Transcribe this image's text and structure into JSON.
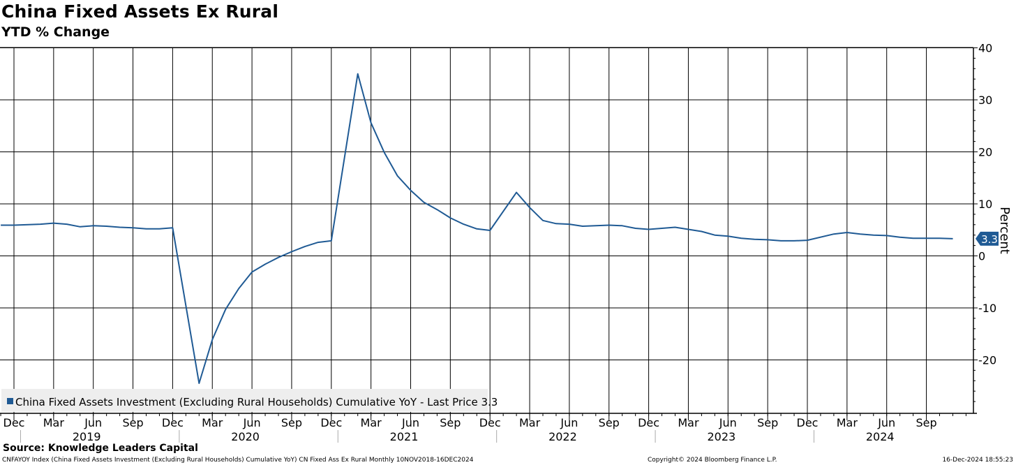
{
  "header": {
    "title": "China Fixed Assets Ex Rural",
    "subtitle": "YTD % Change"
  },
  "footer": {
    "source": "Source: Knowledge Leaders Capital",
    "ticker_line": "CNFAYOY Index (China Fixed Assets Investment (Excluding Rural Households) Cumulative YoY) CN Fixed Ass Ex Rural  Monthly 10NOV2018-16DEC2024",
    "copyright": "Copyright© 2024 Bloomberg Finance L.P.",
    "timestamp": "16-Dec-2024 18:55:23"
  },
  "colors": {
    "series": "#1f5a94",
    "grid": "#000000",
    "legend_bg": "#eeeeee"
  },
  "chart_data": {
    "type": "line",
    "title": "China Fixed Assets Ex Rural",
    "subtitle": "YTD % Change",
    "ylabel": "Percent",
    "ylim": [
      -30,
      40
    ],
    "y_ticks": [
      40,
      30,
      20,
      10,
      0,
      -10,
      -20
    ],
    "y_tick_labels": [
      "40",
      "30",
      "20",
      "10",
      "0",
      "-10",
      "-20"
    ],
    "x_range": [
      "2018-11",
      "2024-12"
    ],
    "x_tick_labels": [
      {
        "label": "Dec",
        "date": "2018-12"
      },
      {
        "label": "Mar",
        "date": "2019-03"
      },
      {
        "label": "Jun",
        "date": "2019-06"
      },
      {
        "label": "Sep",
        "date": "2019-09"
      },
      {
        "label": "Dec",
        "date": "2019-12"
      },
      {
        "label": "Mar",
        "date": "2020-03"
      },
      {
        "label": "Jun",
        "date": "2020-06"
      },
      {
        "label": "Sep",
        "date": "2020-09"
      },
      {
        "label": "Dec",
        "date": "2020-12"
      },
      {
        "label": "Mar",
        "date": "2021-03"
      },
      {
        "label": "Jun",
        "date": "2021-06"
      },
      {
        "label": "Sep",
        "date": "2021-09"
      },
      {
        "label": "Dec",
        "date": "2021-12"
      },
      {
        "label": "Mar",
        "date": "2022-03"
      },
      {
        "label": "Jun",
        "date": "2022-06"
      },
      {
        "label": "Sep",
        "date": "2022-09"
      },
      {
        "label": "Dec",
        "date": "2022-12"
      },
      {
        "label": "Mar",
        "date": "2023-03"
      },
      {
        "label": "Jun",
        "date": "2023-06"
      },
      {
        "label": "Sep",
        "date": "2023-09"
      },
      {
        "label": "Dec",
        "date": "2023-12"
      },
      {
        "label": "Mar",
        "date": "2024-03"
      },
      {
        "label": "Jun",
        "date": "2024-06"
      },
      {
        "label": "Sep",
        "date": "2024-09"
      }
    ],
    "year_labels": [
      {
        "label": "2019",
        "date": "2019-06"
      },
      {
        "label": "2020",
        "date": "2020-06"
      },
      {
        "label": "2021",
        "date": "2021-06"
      },
      {
        "label": "2022",
        "date": "2022-06"
      },
      {
        "label": "2023",
        "date": "2023-06"
      },
      {
        "label": "2024",
        "date": "2024-06"
      }
    ],
    "grid": true,
    "legend": {
      "placement": "bottom-left",
      "text": "China Fixed Assets Investment (Excluding Rural Households) Cumulative YoY - Last Price 3.3"
    },
    "last_price_label": "3.3",
    "last_value": 3.3,
    "series": [
      {
        "name": "China Fixed Assets Investment (Excluding Rural Households) Cumulative YoY",
        "points": [
          {
            "x": "2018-11",
            "y": 5.9
          },
          {
            "x": "2018-12",
            "y": 5.9
          },
          {
            "x": "2019-02",
            "y": 6.1
          },
          {
            "x": "2019-03",
            "y": 6.3
          },
          {
            "x": "2019-04",
            "y": 6.1
          },
          {
            "x": "2019-05",
            "y": 5.6
          },
          {
            "x": "2019-06",
            "y": 5.8
          },
          {
            "x": "2019-07",
            "y": 5.7
          },
          {
            "x": "2019-08",
            "y": 5.5
          },
          {
            "x": "2019-09",
            "y": 5.4
          },
          {
            "x": "2019-10",
            "y": 5.2
          },
          {
            "x": "2019-11",
            "y": 5.2
          },
          {
            "x": "2019-12",
            "y": 5.4
          },
          {
            "x": "2020-02",
            "y": -24.5
          },
          {
            "x": "2020-03",
            "y": -16.1
          },
          {
            "x": "2020-04",
            "y": -10.3
          },
          {
            "x": "2020-05",
            "y": -6.3
          },
          {
            "x": "2020-06",
            "y": -3.1
          },
          {
            "x": "2020-07",
            "y": -1.6
          },
          {
            "x": "2020-08",
            "y": -0.3
          },
          {
            "x": "2020-09",
            "y": 0.8
          },
          {
            "x": "2020-10",
            "y": 1.8
          },
          {
            "x": "2020-11",
            "y": 2.6
          },
          {
            "x": "2020-12",
            "y": 2.9
          },
          {
            "x": "2021-02",
            "y": 35.0
          },
          {
            "x": "2021-03",
            "y": 25.6
          },
          {
            "x": "2021-04",
            "y": 19.9
          },
          {
            "x": "2021-05",
            "y": 15.4
          },
          {
            "x": "2021-06",
            "y": 12.6
          },
          {
            "x": "2021-07",
            "y": 10.3
          },
          {
            "x": "2021-08",
            "y": 8.9
          },
          {
            "x": "2021-09",
            "y": 7.3
          },
          {
            "x": "2021-10",
            "y": 6.1
          },
          {
            "x": "2021-11",
            "y": 5.2
          },
          {
            "x": "2021-12",
            "y": 4.9
          },
          {
            "x": "2022-02",
            "y": 12.2
          },
          {
            "x": "2022-03",
            "y": 9.3
          },
          {
            "x": "2022-04",
            "y": 6.8
          },
          {
            "x": "2022-05",
            "y": 6.2
          },
          {
            "x": "2022-06",
            "y": 6.1
          },
          {
            "x": "2022-07",
            "y": 5.7
          },
          {
            "x": "2022-08",
            "y": 5.8
          },
          {
            "x": "2022-09",
            "y": 5.9
          },
          {
            "x": "2022-10",
            "y": 5.8
          },
          {
            "x": "2022-11",
            "y": 5.3
          },
          {
            "x": "2022-12",
            "y": 5.1
          },
          {
            "x": "2023-02",
            "y": 5.5
          },
          {
            "x": "2023-03",
            "y": 5.1
          },
          {
            "x": "2023-04",
            "y": 4.7
          },
          {
            "x": "2023-05",
            "y": 4.0
          },
          {
            "x": "2023-06",
            "y": 3.8
          },
          {
            "x": "2023-07",
            "y": 3.4
          },
          {
            "x": "2023-08",
            "y": 3.2
          },
          {
            "x": "2023-09",
            "y": 3.1
          },
          {
            "x": "2023-10",
            "y": 2.9
          },
          {
            "x": "2023-11",
            "y": 2.9
          },
          {
            "x": "2023-12",
            "y": 3.0
          },
          {
            "x": "2024-02",
            "y": 4.2
          },
          {
            "x": "2024-03",
            "y": 4.5
          },
          {
            "x": "2024-04",
            "y": 4.2
          },
          {
            "x": "2024-05",
            "y": 4.0
          },
          {
            "x": "2024-06",
            "y": 3.9
          },
          {
            "x": "2024-07",
            "y": 3.6
          },
          {
            "x": "2024-08",
            "y": 3.4
          },
          {
            "x": "2024-09",
            "y": 3.4
          },
          {
            "x": "2024-10",
            "y": 3.4
          },
          {
            "x": "2024-11",
            "y": 3.3
          }
        ]
      }
    ]
  }
}
